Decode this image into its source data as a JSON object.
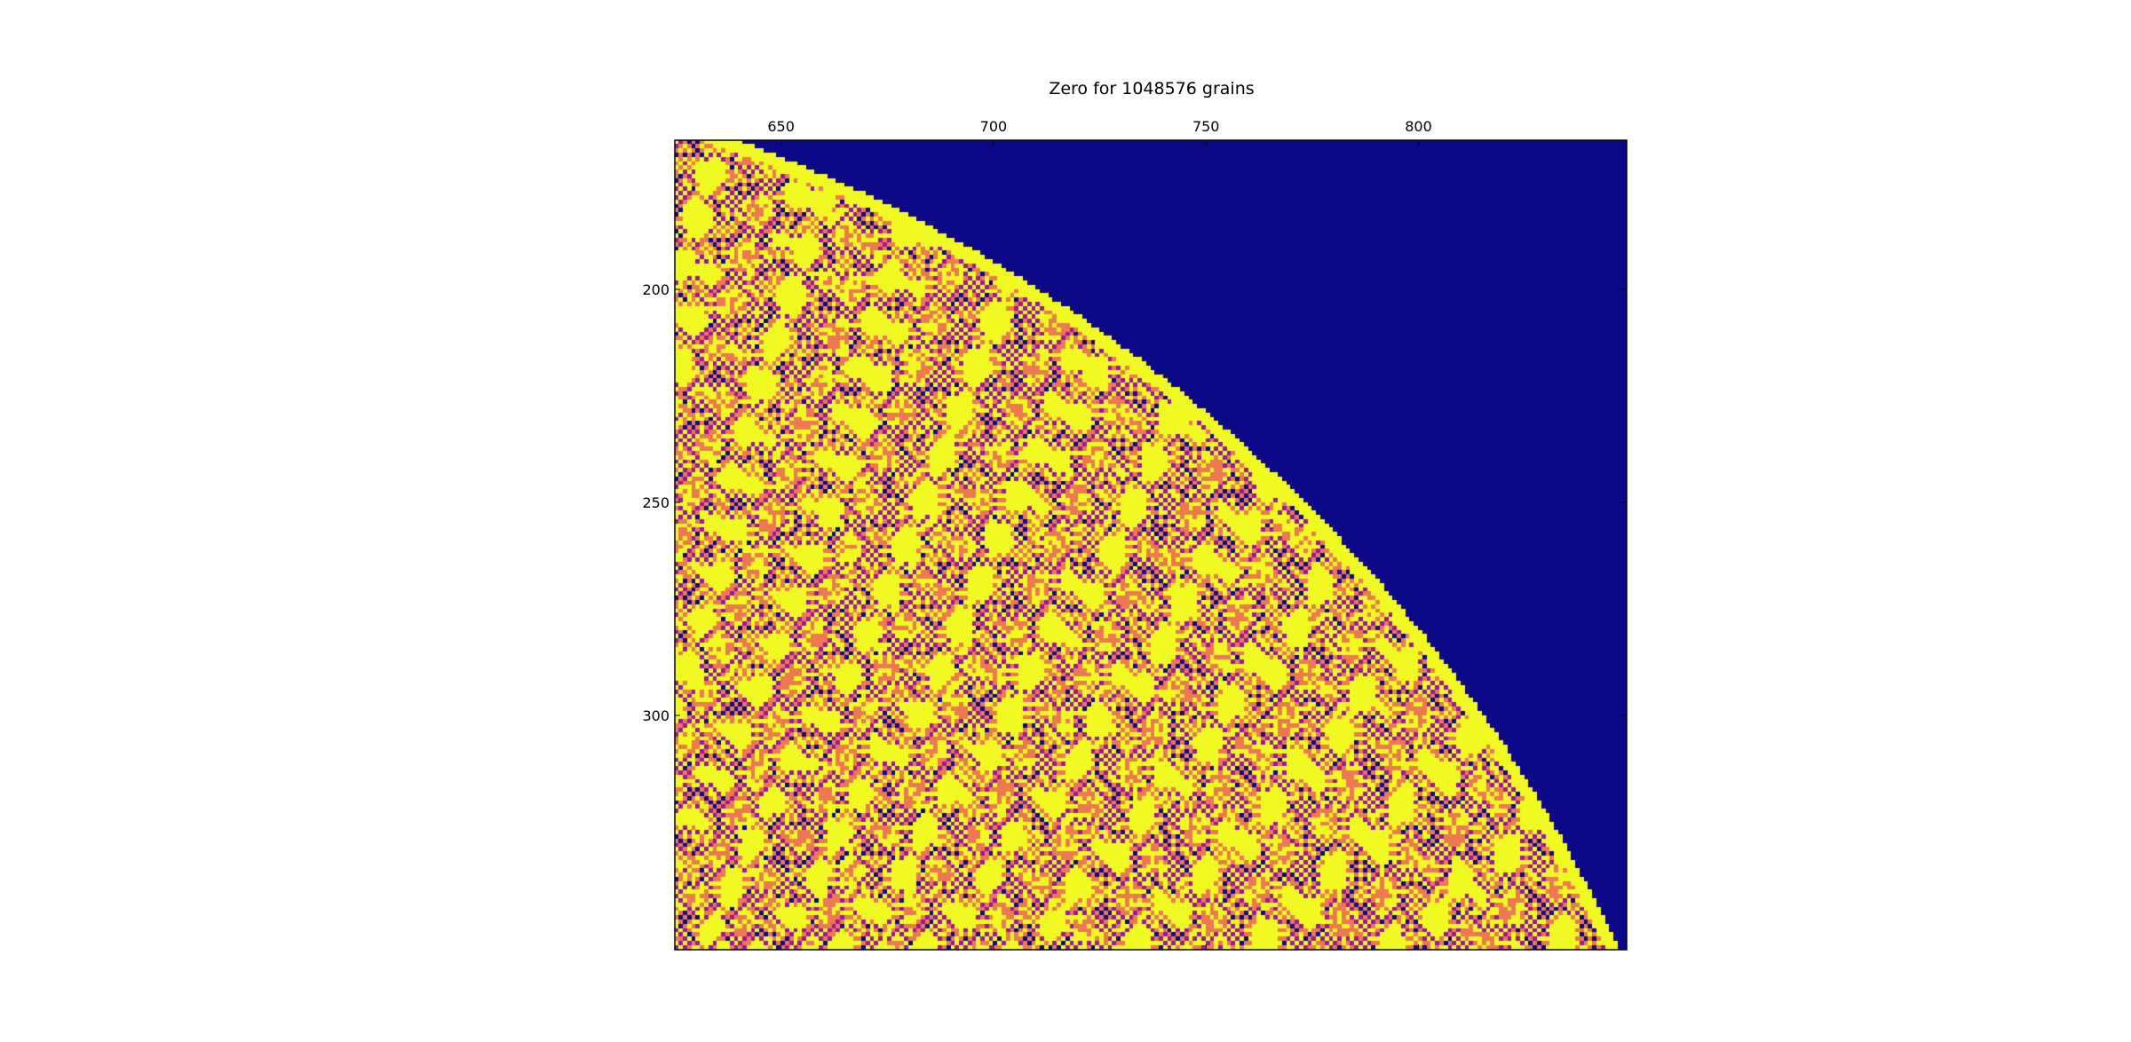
{
  "chart_data": {
    "type": "heatmap",
    "title": "Zero for 1048576 grains",
    "xlabel": "",
    "ylabel": "",
    "x_axis_position": "top",
    "xlim": [
      625,
      849
    ],
    "ylim": [
      355,
      165
    ],
    "x_ticks": [
      "650",
      "700",
      "750",
      "800"
    ],
    "x_tick_values": [
      650,
      700,
      750,
      800
    ],
    "y_ticks": [
      "200",
      "250",
      "300"
    ],
    "y_tick_values": [
      200,
      250,
      300
    ],
    "grid": false,
    "legend": "none",
    "pile_center": [
      512,
      512
    ],
    "pile_radius": 370,
    "values_range": [
      0,
      3
    ],
    "colormap": {
      "0": "#0d0887",
      "1": "#9c179e",
      "2": "#ed7953",
      "3": "#f0f921"
    }
  }
}
